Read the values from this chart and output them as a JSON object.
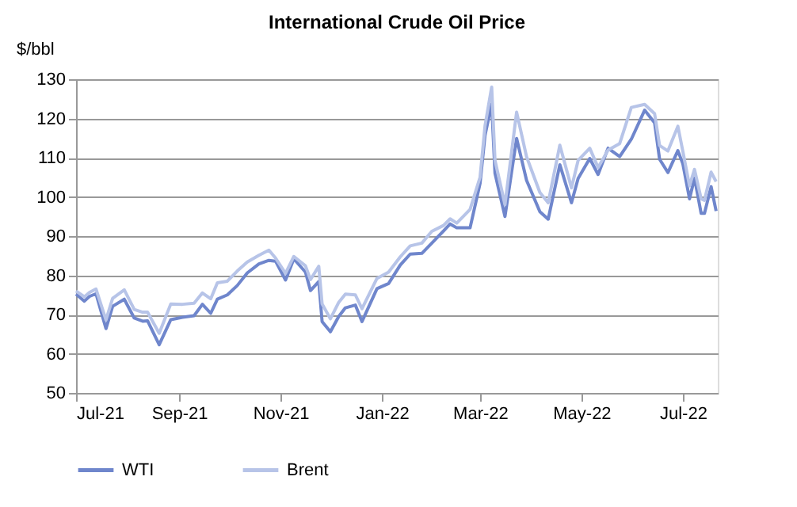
{
  "chart_data": {
    "type": "line",
    "title": "International Crude Oil Price",
    "ylabel": "$/bbl",
    "x": [
      "2021-07-01",
      "2021-07-06",
      "2021-07-09",
      "2021-07-13",
      "2021-07-19",
      "2021-07-23",
      "2021-07-30",
      "2021-08-05",
      "2021-08-10",
      "2021-08-13",
      "2021-08-20",
      "2021-08-27",
      "2021-09-03",
      "2021-09-10",
      "2021-09-15",
      "2021-09-20",
      "2021-09-24",
      "2021-09-30",
      "2021-10-06",
      "2021-10-12",
      "2021-10-19",
      "2021-10-25",
      "2021-10-29",
      "2021-11-04",
      "2021-11-09",
      "2021-11-16",
      "2021-11-19",
      "2021-11-24",
      "2021-11-26",
      "2021-12-01",
      "2021-12-06",
      "2021-12-10",
      "2021-12-16",
      "2021-12-20",
      "2021-12-29",
      "2022-01-05",
      "2022-01-12",
      "2022-01-18",
      "2022-01-25",
      "2022-01-31",
      "2022-02-07",
      "2022-02-11",
      "2022-02-15",
      "2022-02-23",
      "2022-03-01",
      "2022-03-04",
      "2022-03-08",
      "2022-03-10",
      "2022-03-16",
      "2022-03-23",
      "2022-03-29",
      "2022-04-06",
      "2022-04-11",
      "2022-04-18",
      "2022-04-25",
      "2022-04-29",
      "2022-05-06",
      "2022-05-11",
      "2022-05-17",
      "2022-05-24",
      "2022-05-31",
      "2022-06-08",
      "2022-06-14",
      "2022-06-17",
      "2022-06-22",
      "2022-06-28",
      "2022-07-01",
      "2022-07-05",
      "2022-07-08",
      "2022-07-12",
      "2022-07-14",
      "2022-07-18",
      "2022-07-21"
    ],
    "series": [
      {
        "name": "WTI",
        "color": "#6f86cc",
        "values": [
          75.2,
          73.4,
          74.6,
          75.3,
          66.4,
          72.1,
          73.9,
          69.1,
          68.3,
          68.4,
          62.3,
          68.7,
          69.3,
          69.7,
          72.6,
          70.3,
          73.9,
          75.0,
          77.4,
          80.6,
          82.9,
          83.8,
          83.6,
          78.8,
          84.2,
          80.8,
          76.1,
          78.4,
          68.2,
          65.6,
          69.5,
          71.7,
          72.4,
          68.2,
          76.6,
          77.9,
          82.6,
          85.4,
          85.6,
          88.2,
          91.3,
          93.1,
          92.1,
          92.1,
          103.4,
          115.7,
          123.7,
          106.0,
          95.0,
          114.9,
          104.2,
          96.2,
          94.3,
          108.2,
          98.5,
          104.7,
          109.8,
          105.7,
          112.4,
          110.3,
          114.7,
          122.1,
          118.9,
          109.6,
          106.2,
          111.8,
          108.4,
          99.5,
          104.8,
          95.8,
          95.8,
          102.6,
          96.4
        ]
      },
      {
        "name": "Brent",
        "color": "#b7c4e8",
        "values": [
          76.0,
          74.5,
          75.6,
          76.5,
          68.6,
          74.1,
          76.3,
          71.3,
          70.6,
          70.6,
          65.2,
          72.7,
          72.6,
          72.9,
          75.5,
          74.0,
          78.1,
          78.5,
          81.1,
          83.4,
          85.1,
          86.4,
          84.4,
          80.5,
          84.8,
          82.4,
          78.9,
          82.3,
          72.7,
          68.9,
          73.1,
          75.2,
          75.0,
          71.5,
          79.2,
          80.8,
          84.7,
          87.5,
          88.2,
          91.2,
          92.7,
          94.4,
          93.3,
          96.8,
          105.0,
          118.1,
          128.0,
          109.3,
          98.0,
          121.6,
          110.2,
          101.1,
          98.5,
          113.2,
          102.3,
          109.3,
          112.4,
          107.5,
          111.9,
          113.6,
          122.8,
          123.6,
          121.2,
          113.1,
          111.7,
          118.0,
          111.6,
          102.8,
          107.0,
          99.5,
          99.1,
          106.3,
          103.9
        ]
      }
    ],
    "xlim": [
      "2021-07-01",
      "2022-07-22"
    ],
    "xticks": [
      {
        "value": "2021-07-01",
        "label": "Jul-21"
      },
      {
        "value": "2021-09-01",
        "label": "Sep-21"
      },
      {
        "value": "2021-11-01",
        "label": "Nov-21"
      },
      {
        "value": "2022-01-01",
        "label": "Jan-22"
      },
      {
        "value": "2022-03-01",
        "label": "Mar-22"
      },
      {
        "value": "2022-05-01",
        "label": "May-22"
      },
      {
        "value": "2022-07-01",
        "label": "Jul-22"
      }
    ],
    "ylim": [
      50,
      130
    ],
    "yticks": [
      50,
      60,
      70,
      80,
      90,
      100,
      110,
      120,
      130
    ],
    "grid": "y",
    "legend": "bottom",
    "line_style": "solid",
    "marker": "none"
  }
}
